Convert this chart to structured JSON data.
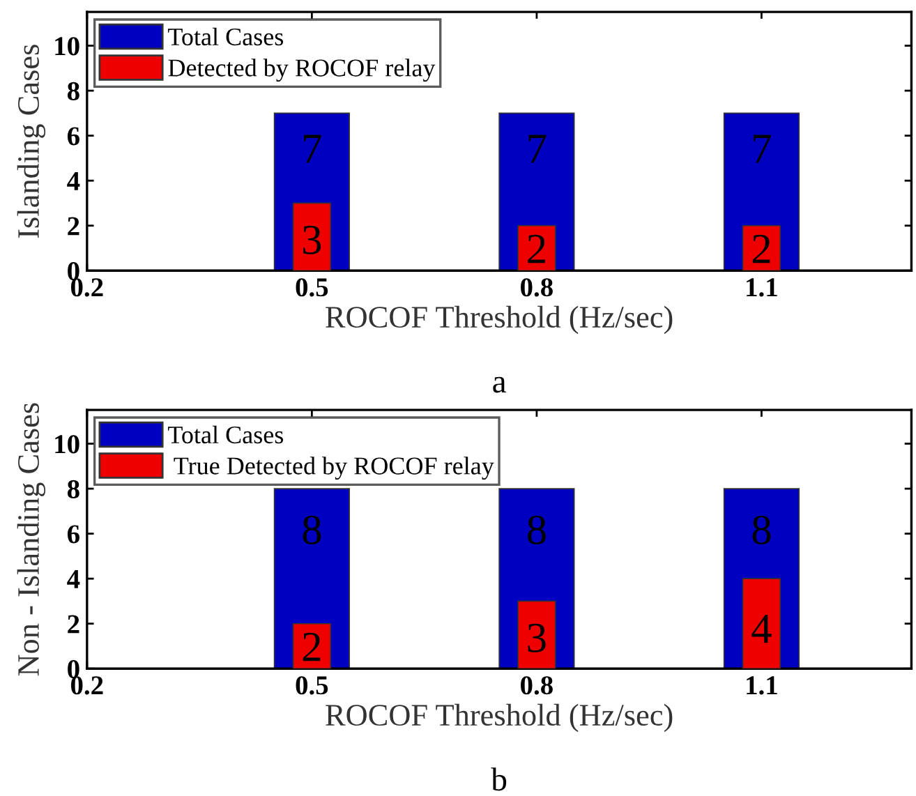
{
  "chart_data": [
    {
      "type": "bar",
      "x": [
        0.5,
        0.8,
        1.1
      ],
      "xlabel": "ROCOF Threshold (Hz/sec)",
      "ylabel": "Islanding Cases",
      "series": [
        {
          "name": "Total Cases",
          "color": "#0000c0",
          "values": [
            7,
            7,
            7
          ]
        },
        {
          "name": "Detected by ROCOF relay",
          "color": "#ee0000",
          "values": [
            3,
            2,
            2
          ]
        }
      ],
      "data_labels": true,
      "xlim": [
        0.2,
        1.3
      ],
      "xticks": [
        0.2,
        0.5,
        0.8,
        1.1
      ],
      "ylim": [
        0,
        11.5
      ],
      "yticks": [
        0,
        2,
        4,
        6,
        8,
        10
      ],
      "legend": "top left",
      "grid": false,
      "annotations": [
        "a"
      ]
    },
    {
      "type": "bar",
      "x": [
        0.5,
        0.8,
        1.1
      ],
      "xlabel": "ROCOF Threshold (Hz/sec)",
      "ylabel": "Non - Islanding Cases",
      "series": [
        {
          "name": "Total Cases",
          "color": "#0000c0",
          "values": [
            8,
            8,
            8
          ]
        },
        {
          "name": " True Detected by ROCOF relay",
          "color": "#ee0000",
          "values": [
            2,
            3,
            4
          ]
        }
      ],
      "data_labels": true,
      "xlim": [
        0.2,
        1.3
      ],
      "xticks": [
        0.2,
        0.5,
        0.8,
        1.1
      ],
      "ylim": [
        0,
        11.5
      ],
      "yticks": [
        0,
        2,
        4,
        6,
        8,
        10
      ],
      "legend": "top left",
      "grid": false,
      "annotations": [
        "b"
      ]
    }
  ]
}
